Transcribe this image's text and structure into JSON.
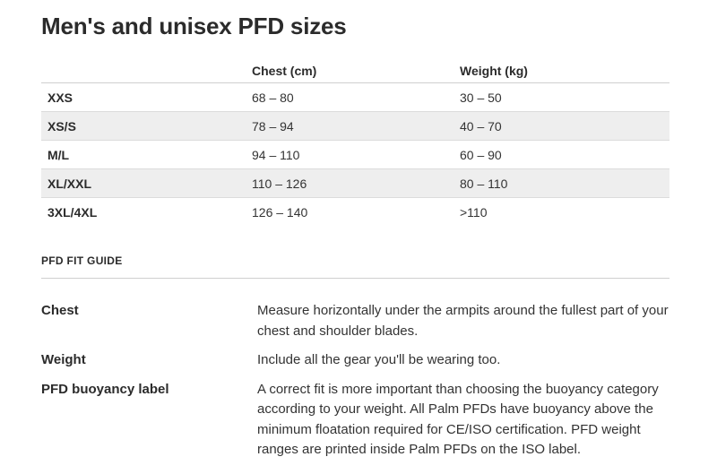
{
  "page": {
    "title": "Men's and unisex PFD sizes"
  },
  "size_table": {
    "headers": [
      "",
      "Chest (cm)",
      "Weight (kg)"
    ],
    "rows": [
      {
        "size": "XXS",
        "chest": "68 – 80",
        "weight": "30 – 50"
      },
      {
        "size": "XS/S",
        "chest": "78 – 94",
        "weight": "40 – 70"
      },
      {
        "size": "M/L",
        "chest": "94 – 110",
        "weight": "60 – 90"
      },
      {
        "size": "XL/XXL",
        "chest": "110 – 126",
        "weight": "80 – 110"
      },
      {
        "size": "3XL/4XL",
        "chest": "126 – 140",
        "weight": ">110"
      }
    ]
  },
  "fit_guide": {
    "heading": "PFD FIT GUIDE",
    "items": [
      {
        "term": "Chest",
        "description": "Measure horizontally under the armpits around the fullest part of your chest and shoulder blades."
      },
      {
        "term": "Weight",
        "description": "Include all the gear you'll be wearing too."
      },
      {
        "term": "PFD buoyancy label",
        "description": "A correct fit is more important than choosing the buoyancy category according to your weight. All Palm PFDs have buoyancy above the minimum floatation required for CE/ISO certification. PFD weight ranges are printed inside Palm PFDs on the ISO label."
      }
    ]
  }
}
